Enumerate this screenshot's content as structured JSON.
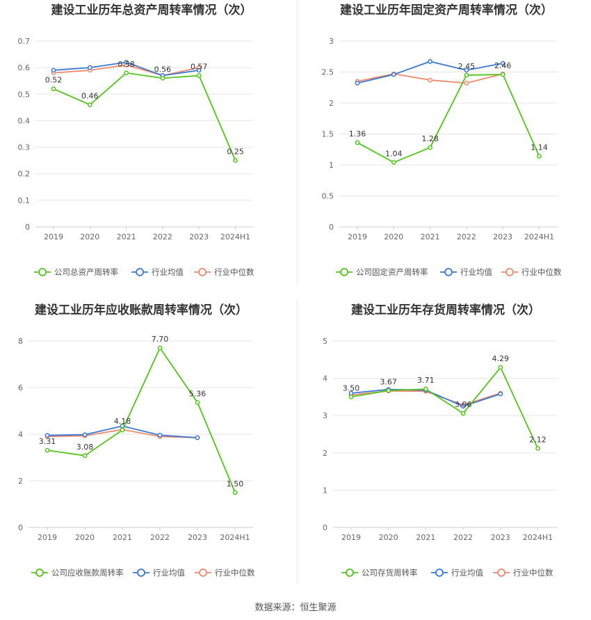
{
  "colors": {
    "company": "#52c41a",
    "avg": "#3a77d4",
    "median": "#f08a6c",
    "grid": "#e6e6e6",
    "axis": "#cccccc"
  },
  "chart_data": [
    {
      "type": "line",
      "title": "建设工业历年总资产周转率情况（次）",
      "categories": [
        "2019",
        "2020",
        "2021",
        "2022",
        "2023",
        "2024H1"
      ],
      "ylim": [
        0,
        0.7
      ],
      "yticks": [
        "0",
        "0.1",
        "0.2",
        "0.3",
        "0.4",
        "0.5",
        "0.6",
        "0.7"
      ],
      "series": [
        {
          "name": "公司总资产周转率",
          "key": "company",
          "values": [
            0.52,
            0.46,
            0.58,
            0.56,
            0.57,
            0.25
          ],
          "labels": [
            "0.52",
            "0.46",
            "0.58",
            "0.56",
            "0.57",
            "0.25"
          ]
        },
        {
          "name": "行业均值",
          "key": "avg",
          "values": [
            0.59,
            0.6,
            0.62,
            0.57,
            0.59,
            null
          ]
        },
        {
          "name": "行业中位数",
          "key": "median",
          "values": [
            0.58,
            0.59,
            0.61,
            0.57,
            0.6,
            null
          ]
        }
      ]
    },
    {
      "type": "line",
      "title": "建设工业历年固定资产周转率情况（次）",
      "categories": [
        "2019",
        "2020",
        "2021",
        "2022",
        "2023",
        "2024H1"
      ],
      "ylim": [
        0,
        3
      ],
      "yticks": [
        "0",
        "0.5",
        "1",
        "1.5",
        "2",
        "2.5",
        "3"
      ],
      "series": [
        {
          "name": "公司固定资产周转率",
          "key": "company",
          "values": [
            1.36,
            1.04,
            1.28,
            2.45,
            2.46,
            1.14
          ],
          "labels": [
            "1.36",
            "1.04",
            "1.28",
            "2.45",
            "2.46",
            "1.14"
          ]
        },
        {
          "name": "行业均值",
          "key": "avg",
          "values": [
            2.32,
            2.46,
            2.67,
            2.53,
            2.64,
            null
          ]
        },
        {
          "name": "行业中位数",
          "key": "median",
          "values": [
            2.35,
            2.47,
            2.37,
            2.32,
            2.47,
            null
          ]
        }
      ]
    },
    {
      "type": "line",
      "title": "建设工业历年应收账款周转率情况（次）",
      "categories": [
        "2019",
        "2020",
        "2021",
        "2022",
        "2023",
        "2024H1"
      ],
      "ylim": [
        0,
        8
      ],
      "yticks": [
        "0",
        "2",
        "4",
        "6",
        "8"
      ],
      "series": [
        {
          "name": "公司应收账款周转率",
          "key": "company",
          "values": [
            3.31,
            3.08,
            4.18,
            7.7,
            5.36,
            1.5
          ],
          "labels": [
            "3.31",
            "3.08",
            "4.18",
            "7.70",
            "5.36",
            "1.50"
          ]
        },
        {
          "name": "行业均值",
          "key": "avg",
          "values": [
            3.95,
            3.98,
            4.35,
            3.96,
            3.85,
            null
          ]
        },
        {
          "name": "行业中位数",
          "key": "median",
          "values": [
            3.9,
            3.93,
            4.2,
            3.9,
            3.85,
            null
          ]
        }
      ]
    },
    {
      "type": "line",
      "title": "建设工业历年存货周转率情况（次）",
      "categories": [
        "2019",
        "2020",
        "2021",
        "2022",
        "2023",
        "2024H1"
      ],
      "ylim": [
        0,
        5
      ],
      "yticks": [
        "0",
        "1",
        "2",
        "3",
        "4",
        "5"
      ],
      "series": [
        {
          "name": "公司存货周转率",
          "key": "company",
          "values": [
            3.5,
            3.67,
            3.71,
            3.06,
            4.29,
            2.12
          ],
          "labels": [
            "3.50",
            "3.67",
            "3.71",
            "3.06",
            "4.29",
            "2.12"
          ]
        },
        {
          "name": "行业均值",
          "key": "avg",
          "values": [
            3.6,
            3.7,
            3.68,
            3.25,
            3.58,
            null
          ]
        },
        {
          "name": "行业中位数",
          "key": "median",
          "values": [
            3.55,
            3.66,
            3.65,
            3.28,
            3.6,
            null
          ]
        }
      ]
    }
  ],
  "footer": "数据来源：恒生聚源"
}
